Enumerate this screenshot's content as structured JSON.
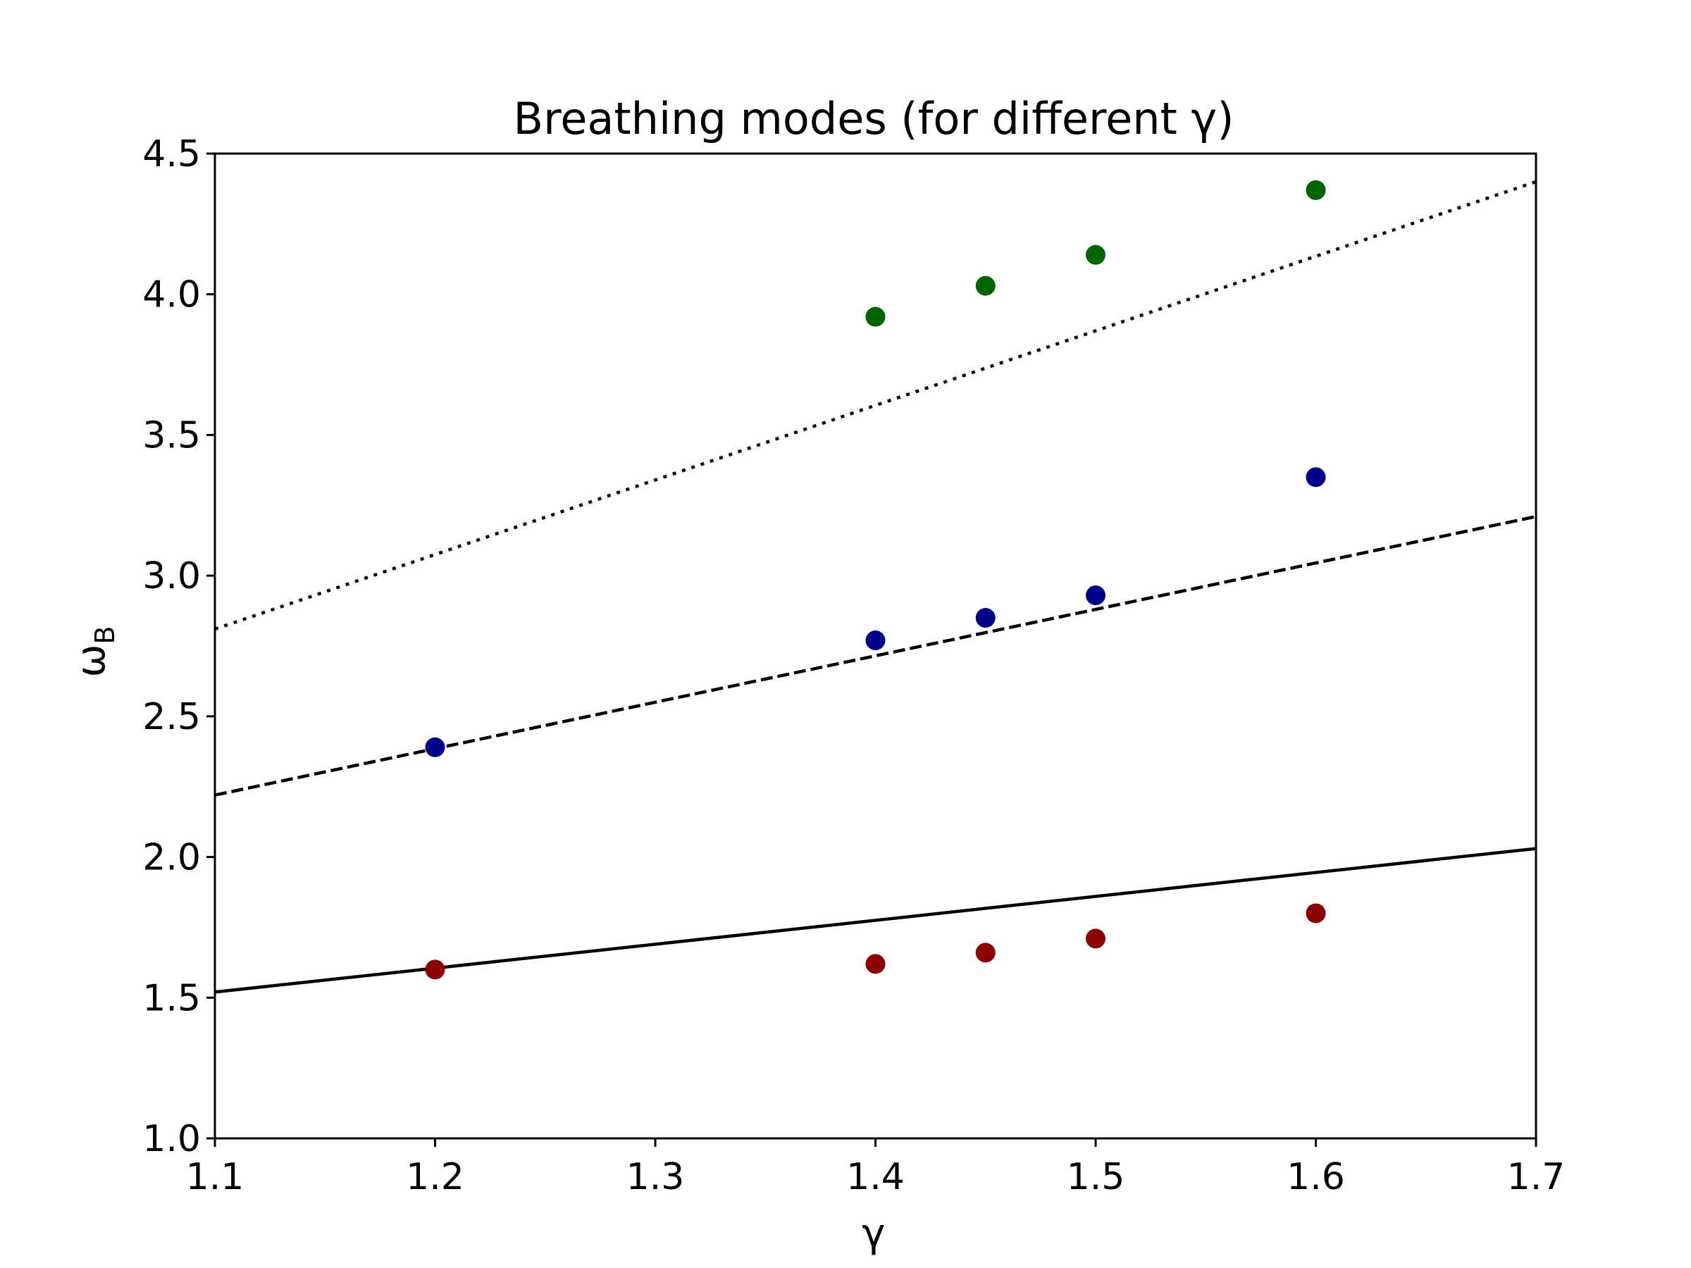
{
  "chart_data": {
    "type": "scatter",
    "title": "Breathing modes (for different γ)",
    "xlabel": "γ",
    "ylabel_main": "ω",
    "ylabel_sub": "B",
    "xlim": [
      1.1,
      1.7
    ],
    "ylim": [
      1.0,
      4.5
    ],
    "xticks": [
      "1.1",
      "1.2",
      "1.3",
      "1.4",
      "1.5",
      "1.6",
      "1.7"
    ],
    "yticks": [
      "1.0",
      "1.5",
      "2.0",
      "2.5",
      "3.0",
      "3.5",
      "4.0",
      "4.5"
    ],
    "grid": false,
    "lines": [
      {
        "style": "solid",
        "color": "#000000",
        "x": [
          1.1,
          1.7
        ],
        "y": [
          1.52,
          2.03
        ]
      },
      {
        "style": "dashed",
        "color": "#000000",
        "x": [
          1.1,
          1.7
        ],
        "y": [
          2.22,
          3.21
        ]
      },
      {
        "style": "dotted",
        "color": "#000000",
        "x": [
          1.1,
          1.7
        ],
        "y": [
          2.81,
          4.4
        ]
      }
    ],
    "series": [
      {
        "color": "#8b0000",
        "x": [
          1.2,
          1.4,
          1.45,
          1.5,
          1.6
        ],
        "y": [
          1.6,
          1.62,
          1.66,
          1.71,
          1.8
        ]
      },
      {
        "color": "#00008b",
        "x": [
          1.2,
          1.4,
          1.45,
          1.5,
          1.6
        ],
        "y": [
          2.39,
          2.77,
          2.85,
          2.93,
          3.35
        ]
      },
      {
        "color": "#006400",
        "x": [
          1.4,
          1.45,
          1.5,
          1.6
        ],
        "y": [
          3.92,
          4.03,
          4.14,
          4.37
        ]
      }
    ]
  }
}
